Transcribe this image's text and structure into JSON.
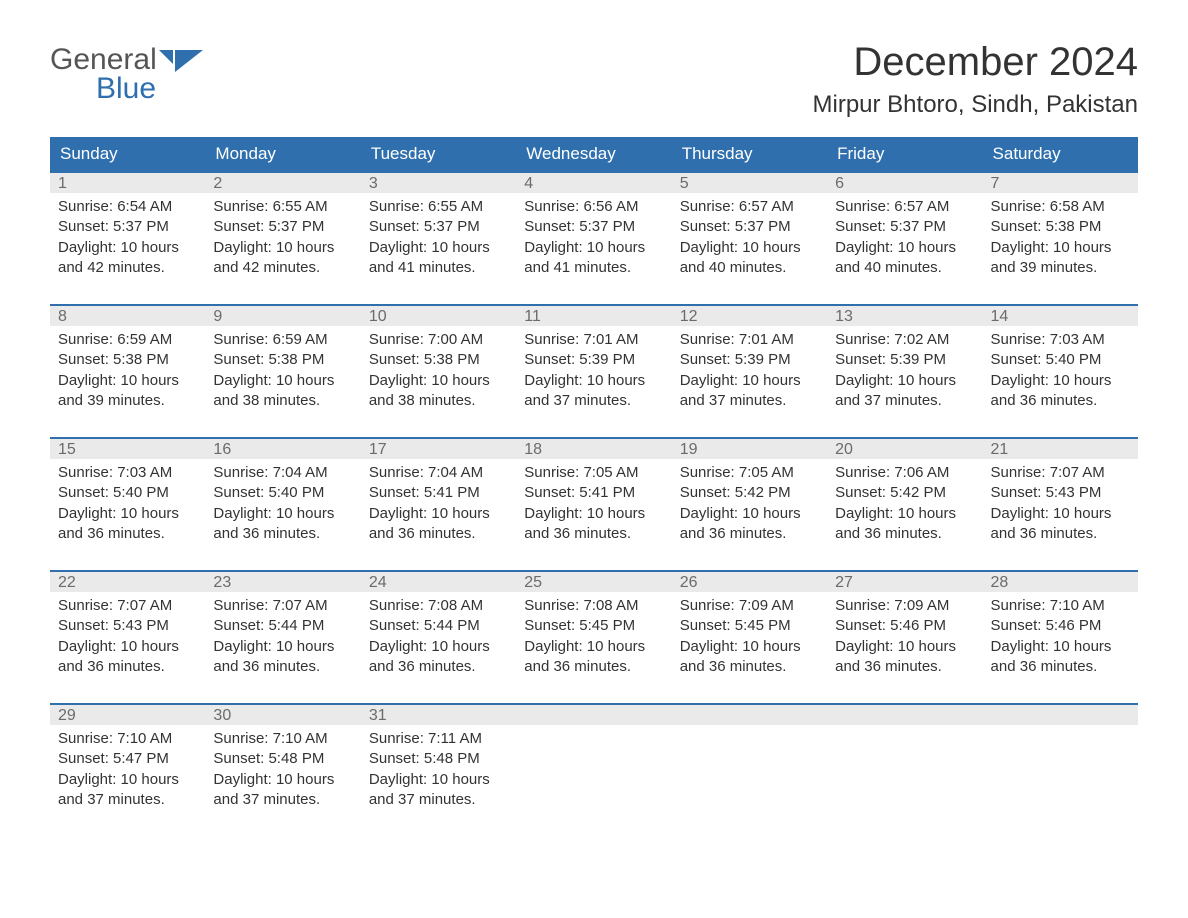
{
  "brand": {
    "line1": "General",
    "line2": "Blue",
    "accent_color": "#2f6fad",
    "text_color": "#555555"
  },
  "title": "December 2024",
  "location": "Mirpur Bhtoro, Sindh, Pakistan",
  "colors": {
    "header_bg": "#2f6fad",
    "header_text": "#ffffff",
    "daynum_bg": "#eaeaea",
    "daynum_text": "#6b6b6b",
    "row_border": "#2f6fad",
    "body_text": "#333333",
    "page_bg": "#ffffff"
  },
  "typography": {
    "title_fontsize": 40,
    "location_fontsize": 24,
    "header_fontsize": 17,
    "daynum_fontsize": 16,
    "body_fontsize": 15,
    "font_family": "Arial"
  },
  "day_names": [
    "Sunday",
    "Monday",
    "Tuesday",
    "Wednesday",
    "Thursday",
    "Friday",
    "Saturday"
  ],
  "weeks": [
    [
      {
        "n": "1",
        "sunrise": "Sunrise: 6:54 AM",
        "sunset": "Sunset: 5:37 PM",
        "dl1": "Daylight: 10 hours",
        "dl2": "and 42 minutes."
      },
      {
        "n": "2",
        "sunrise": "Sunrise: 6:55 AM",
        "sunset": "Sunset: 5:37 PM",
        "dl1": "Daylight: 10 hours",
        "dl2": "and 42 minutes."
      },
      {
        "n": "3",
        "sunrise": "Sunrise: 6:55 AM",
        "sunset": "Sunset: 5:37 PM",
        "dl1": "Daylight: 10 hours",
        "dl2": "and 41 minutes."
      },
      {
        "n": "4",
        "sunrise": "Sunrise: 6:56 AM",
        "sunset": "Sunset: 5:37 PM",
        "dl1": "Daylight: 10 hours",
        "dl2": "and 41 minutes."
      },
      {
        "n": "5",
        "sunrise": "Sunrise: 6:57 AM",
        "sunset": "Sunset: 5:37 PM",
        "dl1": "Daylight: 10 hours",
        "dl2": "and 40 minutes."
      },
      {
        "n": "6",
        "sunrise": "Sunrise: 6:57 AM",
        "sunset": "Sunset: 5:37 PM",
        "dl1": "Daylight: 10 hours",
        "dl2": "and 40 minutes."
      },
      {
        "n": "7",
        "sunrise": "Sunrise: 6:58 AM",
        "sunset": "Sunset: 5:38 PM",
        "dl1": "Daylight: 10 hours",
        "dl2": "and 39 minutes."
      }
    ],
    [
      {
        "n": "8",
        "sunrise": "Sunrise: 6:59 AM",
        "sunset": "Sunset: 5:38 PM",
        "dl1": "Daylight: 10 hours",
        "dl2": "and 39 minutes."
      },
      {
        "n": "9",
        "sunrise": "Sunrise: 6:59 AM",
        "sunset": "Sunset: 5:38 PM",
        "dl1": "Daylight: 10 hours",
        "dl2": "and 38 minutes."
      },
      {
        "n": "10",
        "sunrise": "Sunrise: 7:00 AM",
        "sunset": "Sunset: 5:38 PM",
        "dl1": "Daylight: 10 hours",
        "dl2": "and 38 minutes."
      },
      {
        "n": "11",
        "sunrise": "Sunrise: 7:01 AM",
        "sunset": "Sunset: 5:39 PM",
        "dl1": "Daylight: 10 hours",
        "dl2": "and 37 minutes."
      },
      {
        "n": "12",
        "sunrise": "Sunrise: 7:01 AM",
        "sunset": "Sunset: 5:39 PM",
        "dl1": "Daylight: 10 hours",
        "dl2": "and 37 minutes."
      },
      {
        "n": "13",
        "sunrise": "Sunrise: 7:02 AM",
        "sunset": "Sunset: 5:39 PM",
        "dl1": "Daylight: 10 hours",
        "dl2": "and 37 minutes."
      },
      {
        "n": "14",
        "sunrise": "Sunrise: 7:03 AM",
        "sunset": "Sunset: 5:40 PM",
        "dl1": "Daylight: 10 hours",
        "dl2": "and 36 minutes."
      }
    ],
    [
      {
        "n": "15",
        "sunrise": "Sunrise: 7:03 AM",
        "sunset": "Sunset: 5:40 PM",
        "dl1": "Daylight: 10 hours",
        "dl2": "and 36 minutes."
      },
      {
        "n": "16",
        "sunrise": "Sunrise: 7:04 AM",
        "sunset": "Sunset: 5:40 PM",
        "dl1": "Daylight: 10 hours",
        "dl2": "and 36 minutes."
      },
      {
        "n": "17",
        "sunrise": "Sunrise: 7:04 AM",
        "sunset": "Sunset: 5:41 PM",
        "dl1": "Daylight: 10 hours",
        "dl2": "and 36 minutes."
      },
      {
        "n": "18",
        "sunrise": "Sunrise: 7:05 AM",
        "sunset": "Sunset: 5:41 PM",
        "dl1": "Daylight: 10 hours",
        "dl2": "and 36 minutes."
      },
      {
        "n": "19",
        "sunrise": "Sunrise: 7:05 AM",
        "sunset": "Sunset: 5:42 PM",
        "dl1": "Daylight: 10 hours",
        "dl2": "and 36 minutes."
      },
      {
        "n": "20",
        "sunrise": "Sunrise: 7:06 AM",
        "sunset": "Sunset: 5:42 PM",
        "dl1": "Daylight: 10 hours",
        "dl2": "and 36 minutes."
      },
      {
        "n": "21",
        "sunrise": "Sunrise: 7:07 AM",
        "sunset": "Sunset: 5:43 PM",
        "dl1": "Daylight: 10 hours",
        "dl2": "and 36 minutes."
      }
    ],
    [
      {
        "n": "22",
        "sunrise": "Sunrise: 7:07 AM",
        "sunset": "Sunset: 5:43 PM",
        "dl1": "Daylight: 10 hours",
        "dl2": "and 36 minutes."
      },
      {
        "n": "23",
        "sunrise": "Sunrise: 7:07 AM",
        "sunset": "Sunset: 5:44 PM",
        "dl1": "Daylight: 10 hours",
        "dl2": "and 36 minutes."
      },
      {
        "n": "24",
        "sunrise": "Sunrise: 7:08 AM",
        "sunset": "Sunset: 5:44 PM",
        "dl1": "Daylight: 10 hours",
        "dl2": "and 36 minutes."
      },
      {
        "n": "25",
        "sunrise": "Sunrise: 7:08 AM",
        "sunset": "Sunset: 5:45 PM",
        "dl1": "Daylight: 10 hours",
        "dl2": "and 36 minutes."
      },
      {
        "n": "26",
        "sunrise": "Sunrise: 7:09 AM",
        "sunset": "Sunset: 5:45 PM",
        "dl1": "Daylight: 10 hours",
        "dl2": "and 36 minutes."
      },
      {
        "n": "27",
        "sunrise": "Sunrise: 7:09 AM",
        "sunset": "Sunset: 5:46 PM",
        "dl1": "Daylight: 10 hours",
        "dl2": "and 36 minutes."
      },
      {
        "n": "28",
        "sunrise": "Sunrise: 7:10 AM",
        "sunset": "Sunset: 5:46 PM",
        "dl1": "Daylight: 10 hours",
        "dl2": "and 36 minutes."
      }
    ],
    [
      {
        "n": "29",
        "sunrise": "Sunrise: 7:10 AM",
        "sunset": "Sunset: 5:47 PM",
        "dl1": "Daylight: 10 hours",
        "dl2": "and 37 minutes."
      },
      {
        "n": "30",
        "sunrise": "Sunrise: 7:10 AM",
        "sunset": "Sunset: 5:48 PM",
        "dl1": "Daylight: 10 hours",
        "dl2": "and 37 minutes."
      },
      {
        "n": "31",
        "sunrise": "Sunrise: 7:11 AM",
        "sunset": "Sunset: 5:48 PM",
        "dl1": "Daylight: 10 hours",
        "dl2": "and 37 minutes."
      },
      {
        "empty": true
      },
      {
        "empty": true
      },
      {
        "empty": true
      },
      {
        "empty": true
      }
    ]
  ]
}
